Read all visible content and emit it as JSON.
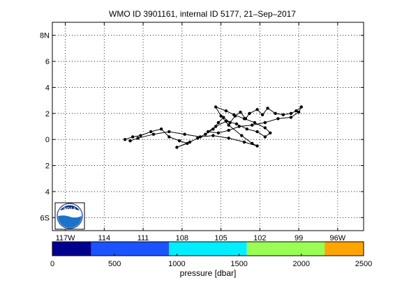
{
  "chart_data": [
    {
      "type": "scatter",
      "title": "WMO ID 3901161, internal ID 5177, 21–Sep–2017",
      "xlim": [
        -118,
        -94
      ],
      "ylim": [
        -7,
        9
      ],
      "grid": true,
      "y_ticks": [
        {
          "value": 8,
          "label": "8N"
        },
        {
          "value": 6,
          "label": "6"
        },
        {
          "value": 4,
          "label": "4"
        },
        {
          "value": 2,
          "label": "2"
        },
        {
          "value": 0,
          "label": "0"
        },
        {
          "value": -2,
          "label": "2"
        },
        {
          "value": -4,
          "label": "4"
        },
        {
          "value": -6,
          "label": "6S"
        }
      ],
      "x_ticks": [
        {
          "value": -117,
          "label": "117W"
        },
        {
          "value": -114,
          "label": "114"
        },
        {
          "value": -111,
          "label": "111"
        },
        {
          "value": -108,
          "label": "108"
        },
        {
          "value": -105,
          "label": "105"
        },
        {
          "value": -102,
          "label": "102"
        },
        {
          "value": -99,
          "label": "99"
        },
        {
          "value": -96,
          "label": "96W"
        }
      ],
      "series": [
        {
          "points": [
            [
              -112.4,
              0.0
            ],
            [
              -111.8,
              0.2
            ],
            [
              -111.2,
              0.3
            ],
            [
              -110.4,
              0.6
            ],
            [
              -109.6,
              0.8
            ],
            [
              -109.0,
              0.2
            ],
            [
              -108.2,
              -0.1
            ],
            [
              -107.6,
              -0.3
            ],
            [
              -108.4,
              -0.6
            ],
            [
              -107.4,
              -0.2
            ],
            [
              -106.8,
              0.1
            ],
            [
              -106.2,
              0.4
            ],
            [
              -105.6,
              0.8
            ],
            [
              -105.2,
              1.3
            ],
            [
              -104.8,
              1.7
            ],
            [
              -104.3,
              1.3
            ],
            [
              -103.9,
              1.8
            ],
            [
              -103.5,
              2.1
            ],
            [
              -103.1,
              1.6
            ],
            [
              -102.8,
              2.0
            ],
            [
              -102.2,
              2.3
            ],
            [
              -101.8,
              1.9
            ],
            [
              -101.4,
              2.4
            ],
            [
              -100.8,
              2.0
            ],
            [
              -100.2,
              1.9
            ],
            [
              -99.6,
              2.0
            ],
            [
              -99.2,
              2.2
            ],
            [
              -98.8,
              2.5
            ],
            [
              -99.0,
              2.1
            ],
            [
              -99.6,
              1.7
            ],
            [
              -100.6,
              1.6
            ],
            [
              -101.6,
              1.3
            ],
            [
              -102.6,
              1.1
            ],
            [
              -103.6,
              1.0
            ],
            [
              -104.4,
              0.7
            ],
            [
              -105.2,
              0.5
            ],
            [
              -106.0,
              0.6
            ],
            [
              -105.4,
              1.0
            ],
            [
              -104.6,
              1.4
            ],
            [
              -103.8,
              1.2
            ],
            [
              -103.0,
              0.8
            ],
            [
              -102.2,
              0.6
            ],
            [
              -101.6,
              0.2
            ],
            [
              -101.2,
              0.5
            ],
            [
              -101.6,
              0.9
            ],
            [
              -102.4,
              1.3
            ],
            [
              -103.2,
              1.6
            ],
            [
              -104.0,
              1.9
            ],
            [
              -104.6,
              2.2
            ],
            [
              -105.4,
              2.5
            ],
            [
              -105.0,
              1.8
            ],
            [
              -104.4,
              1.1
            ],
            [
              -103.4,
              0.3
            ],
            [
              -102.6,
              -0.3
            ],
            [
              -102.2,
              -0.5
            ],
            [
              -103.2,
              -0.2
            ],
            [
              -104.4,
              0.1
            ],
            [
              -105.6,
              0.3
            ],
            [
              -106.6,
              0.2
            ],
            [
              -107.8,
              0.4
            ],
            [
              -109.0,
              0.6
            ],
            [
              -110.2,
              0.4
            ],
            [
              -111.4,
              0.1
            ],
            [
              -112.0,
              -0.1
            ]
          ]
        }
      ],
      "colorbar": {
        "label": "pressure [dbar]",
        "min": 0,
        "max": 2500,
        "tick_values": [
          0,
          500,
          1000,
          1500,
          2000,
          2500
        ],
        "segments": [
          {
            "from": 0,
            "to": 312,
            "color": "#00008f"
          },
          {
            "from": 312,
            "to": 937,
            "color": "#1a53ff"
          },
          {
            "from": 937,
            "to": 1562,
            "color": "#00eeff"
          },
          {
            "from": 1562,
            "to": 2187,
            "color": "#99ff55"
          },
          {
            "from": 2187,
            "to": 2500,
            "color": "#ffa500"
          }
        ]
      }
    }
  ],
  "logo": {
    "text": "NOAA"
  }
}
